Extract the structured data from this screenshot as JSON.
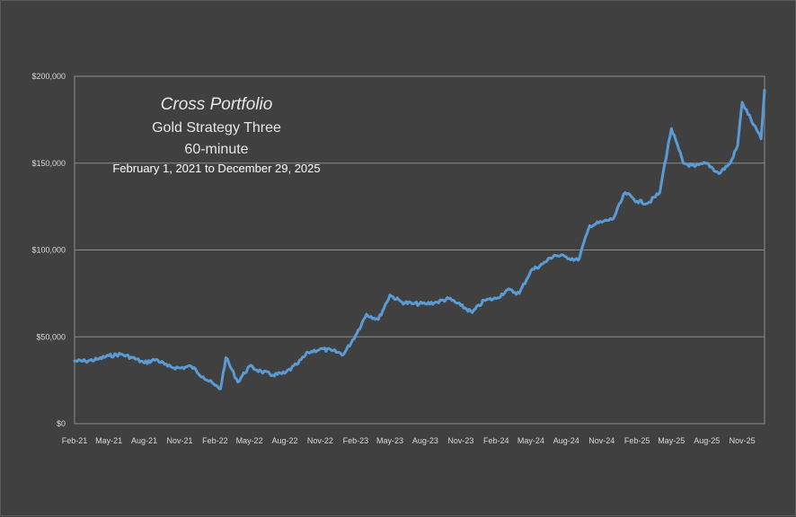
{
  "chart_data": {
    "type": "line",
    "title": "Cross Portfolio",
    "subtitle_lines": [
      "Gold Strategy Three",
      "60-minute"
    ],
    "date_range": "February 1,  2021 to December 29, 2025",
    "xlabel": "",
    "ylabel": "",
    "ylim": [
      0,
      200000
    ],
    "y_ticks": [
      0,
      50000,
      100000,
      150000,
      200000
    ],
    "y_tick_labels": [
      "$0",
      "$50,000",
      "$100,000",
      "$150,000",
      "$200,000"
    ],
    "x_tick_labels": [
      "Feb-21",
      "May-21",
      "Aug-21",
      "Nov-21",
      "Feb-22",
      "May-22",
      "Aug-22",
      "Nov-22",
      "Feb-23",
      "May-23",
      "Aug-23",
      "Nov-23",
      "Feb-24",
      "May-24",
      "Aug-24",
      "Nov-24",
      "Feb-25",
      "May-25",
      "Aug-25",
      "Nov-25"
    ],
    "x_tick_months": [
      "2021-02",
      "2021-05",
      "2021-08",
      "2021-11",
      "2022-02",
      "2022-05",
      "2022-08",
      "2022-11",
      "2023-02",
      "2023-05",
      "2023-08",
      "2023-11",
      "2024-02",
      "2024-05",
      "2024-08",
      "2024-11",
      "2025-02",
      "2025-05",
      "2025-08",
      "2025-11"
    ],
    "x_range": [
      "2021-02-01",
      "2025-12-29"
    ],
    "grid": "horizontal",
    "legend": "none",
    "series_color": "#5b9bd5",
    "series": [
      {
        "x": [
          "2021-02-01",
          "2021-03-01",
          "2021-04-01",
          "2021-05-01",
          "2021-06-01",
          "2021-07-01",
          "2021-08-01",
          "2021-09-01",
          "2021-10-01",
          "2021-11-01",
          "2021-12-01",
          "2022-01-01",
          "2022-02-01",
          "2022-02-15",
          "2022-03-01",
          "2022-04-01",
          "2022-05-01",
          "2022-06-01",
          "2022-07-01",
          "2022-08-01",
          "2022-09-01",
          "2022-10-01",
          "2022-11-01",
          "2022-12-01",
          "2023-01-01",
          "2023-02-01",
          "2023-03-01",
          "2023-04-01",
          "2023-05-01",
          "2023-06-01",
          "2023-07-01",
          "2023-08-01",
          "2023-09-01",
          "2023-10-01",
          "2023-11-01",
          "2023-12-01",
          "2024-01-01",
          "2024-02-01",
          "2024-03-01",
          "2024-04-01",
          "2024-05-01",
          "2024-06-01",
          "2024-07-01",
          "2024-08-01",
          "2024-09-01",
          "2024-10-01",
          "2024-11-01",
          "2024-12-01",
          "2025-01-01",
          "2025-02-01",
          "2025-03-01",
          "2025-04-01",
          "2025-04-10",
          "2025-05-01",
          "2025-06-01",
          "2025-07-01",
          "2025-08-01",
          "2025-09-01",
          "2025-10-01",
          "2025-10-20",
          "2025-11-01",
          "2025-12-01",
          "2025-12-20",
          "2025-12-29"
        ],
        "y": [
          36000,
          36000,
          37000,
          39000,
          40000,
          38000,
          35000,
          37000,
          33000,
          32000,
          33000,
          27000,
          22000,
          20000,
          38000,
          24000,
          33000,
          30000,
          28000,
          29000,
          34000,
          41000,
          43000,
          42000,
          40000,
          51000,
          63000,
          60000,
          74000,
          70000,
          69000,
          69000,
          70000,
          72000,
          68000,
          64000,
          71000,
          72000,
          77000,
          75000,
          88000,
          92000,
          97000,
          96000,
          94000,
          114000,
          116000,
          118000,
          133000,
          128000,
          127000,
          133000,
          145000,
          170000,
          150000,
          148000,
          150000,
          144000,
          150000,
          160000,
          185000,
          172000,
          164000,
          192000
        ]
      }
    ]
  }
}
